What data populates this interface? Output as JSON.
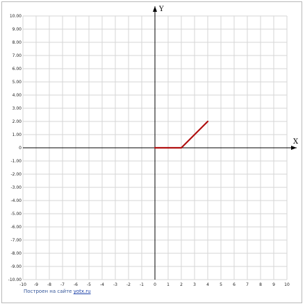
{
  "chart_data": {
    "type": "line",
    "xlabel": "X",
    "ylabel": "Y",
    "xlim": [
      -10,
      10
    ],
    "ylim": [
      -10,
      10
    ],
    "x_ticks": [
      "-10",
      "-9",
      "-8",
      "-7",
      "-6",
      "-5",
      "-4",
      "-3",
      "-2",
      "-1",
      "0",
      "1",
      "2",
      "3",
      "4",
      "5",
      "6",
      "7",
      "8",
      "9",
      "10"
    ],
    "y_ticks": [
      "10.00",
      "9.00",
      "8.00",
      "7.00",
      "6.00",
      "5.00",
      "4.00",
      "3.00",
      "2.00",
      "1.00",
      "0",
      "-1.00",
      "-2.00",
      "-3.00",
      "-4.00",
      "-5.00",
      "-6.00",
      "-7.00",
      "-8.00",
      "-9.00",
      "-10.00"
    ],
    "grid": true,
    "series": [
      {
        "color": "#b01010",
        "points": [
          [
            0,
            0
          ],
          [
            2,
            0
          ],
          [
            4,
            2
          ]
        ]
      }
    ]
  },
  "footer": {
    "text": "Построен на сайте ",
    "link": "yotx.ru"
  }
}
